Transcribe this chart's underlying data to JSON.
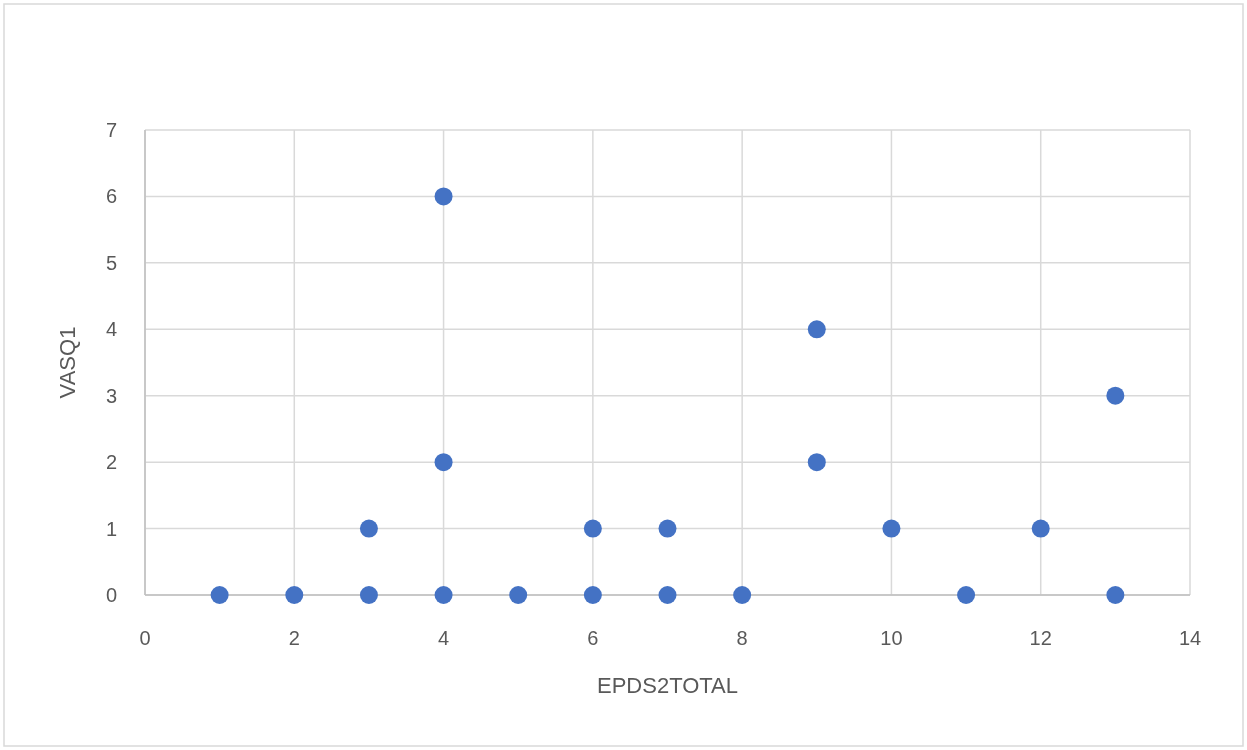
{
  "chart_data": {
    "type": "scatter",
    "xlabel": "EPDS2TOTAL",
    "ylabel": "VASQ1",
    "x": [
      1,
      2,
      3,
      3,
      4,
      4,
      4,
      5,
      6,
      6,
      7,
      7,
      8,
      9,
      9,
      10,
      11,
      12,
      13,
      13
    ],
    "series": [
      {
        "color": "#4472c4",
        "values": [
          0,
          0,
          0,
          1,
          6,
          2,
          0,
          0,
          0,
          1,
          1,
          0,
          0,
          4,
          2,
          1,
          0,
          1,
          3,
          0
        ]
      }
    ],
    "xlim": [
      0,
      14
    ],
    "xticks": [
      0,
      2,
      4,
      6,
      8,
      10,
      12,
      14
    ],
    "ylim": [
      0,
      7
    ],
    "yticks": [
      0,
      1,
      2,
      3,
      4,
      5,
      6,
      7
    ],
    "grid": true,
    "marker": "circle"
  }
}
